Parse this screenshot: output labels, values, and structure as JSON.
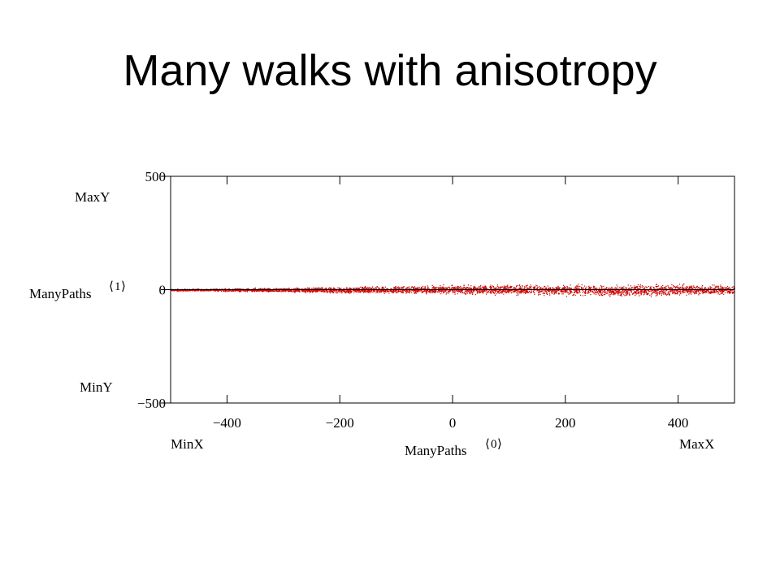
{
  "slide": {
    "title": "Many walks with anisotropy"
  },
  "chart_data": {
    "type": "scatter",
    "xlim": [
      -500,
      500
    ],
    "ylim": [
      -500,
      500
    ],
    "x_ticks": [
      -400,
      -200,
      0,
      200,
      400
    ],
    "x_tick_labels": [
      "−400",
      "−200",
      "0",
      "200",
      "400"
    ],
    "y_ticks": [
      -500,
      0,
      500
    ],
    "y_tick_labels": [
      "−500",
      "0",
      "500"
    ],
    "y_axis_upper_label": "MaxY",
    "y_axis_lower_label": "MinY",
    "y_axis_expr": {
      "name": "ManyPaths",
      "index": "1"
    },
    "x_axis_left_label": "MinX",
    "x_axis_right_label": "MaxX",
    "x_axis_expr": {
      "name": "ManyPaths",
      "index": "0"
    },
    "grid": false,
    "series": [
      {
        "color": "#cc0000",
        "description_points": [
          {
            "x": -500,
            "y_min": -5,
            "y_max": 5
          },
          {
            "x": -400,
            "y_min": -8,
            "y_max": 8
          },
          {
            "x": -300,
            "y_min": -12,
            "y_max": 12
          },
          {
            "x": -200,
            "y_min": -18,
            "y_max": 16
          },
          {
            "x": -100,
            "y_min": -20,
            "y_max": 22
          },
          {
            "x": 0,
            "y_min": -22,
            "y_max": 25
          },
          {
            "x": 100,
            "y_min": -25,
            "y_max": 28
          },
          {
            "x": 200,
            "y_min": -30,
            "y_max": 30
          },
          {
            "x": 300,
            "y_min": -35,
            "y_max": 30
          },
          {
            "x": 400,
            "y_min": -30,
            "y_max": 32
          },
          {
            "x": 500,
            "y_min": -25,
            "y_max": 25
          }
        ]
      }
    ]
  }
}
